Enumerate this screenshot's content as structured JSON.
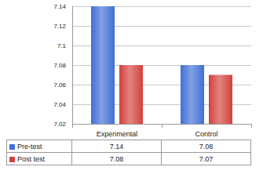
{
  "chart_data": {
    "type": "bar",
    "categories": [
      "Experimental",
      "Control"
    ],
    "series": [
      {
        "name": "Pre-test",
        "color": "#3f6fd6",
        "values": [
          7.14,
          7.08
        ]
      },
      {
        "name": "Post test",
        "color": "#d2413c",
        "values": [
          7.08,
          7.07
        ]
      }
    ],
    "ylim": [
      7.02,
      7.14
    ],
    "yticks": [
      7.02,
      7.04,
      7.06,
      7.08,
      7.1,
      7.12,
      7.14
    ],
    "grid": true
  }
}
